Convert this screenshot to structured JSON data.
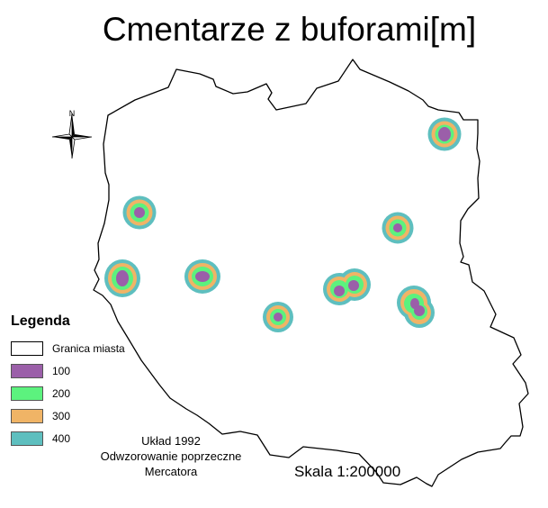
{
  "title": "Cmentarze z buforami[m]",
  "north_arrow": {
    "label": "N",
    "icon": "north-arrow-icon"
  },
  "legend": {
    "title": "Legenda",
    "items": [
      {
        "label": "Granica miasta",
        "color": "#ffffff"
      },
      {
        "label": "100",
        "color": "#9b5fa9"
      },
      {
        "label": "200",
        "color": "#5cf27e"
      },
      {
        "label": "300",
        "color": "#f0b466"
      },
      {
        "label": "400",
        "color": "#5ebfbf"
      }
    ]
  },
  "info": {
    "line1": "Układ 1992",
    "line2": "Odwzorowanie poprzeczne",
    "line3": "Mercatora"
  },
  "scale": "Skala 1:200000"
}
